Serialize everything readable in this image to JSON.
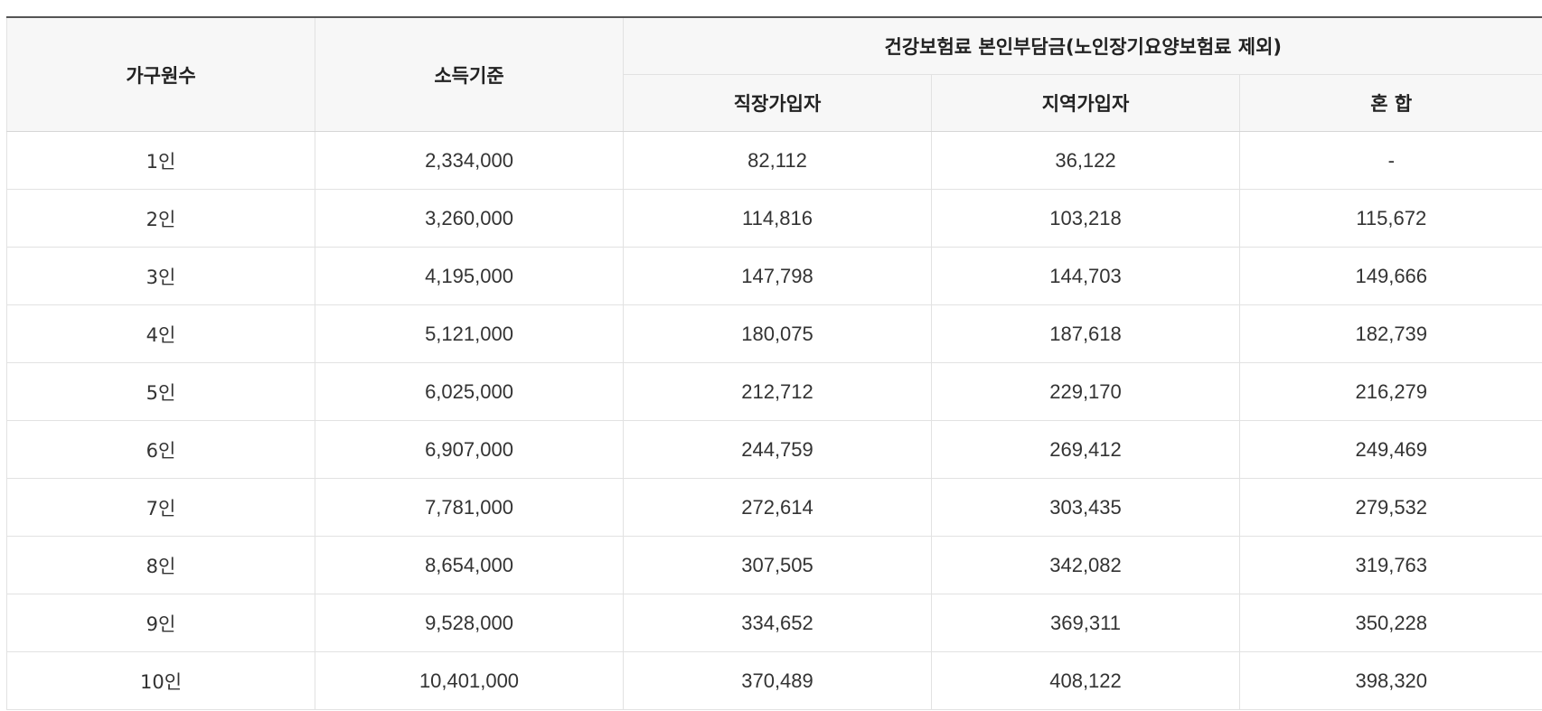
{
  "table": {
    "headers": {
      "household": "가구원수",
      "income": "소득기준",
      "group": "건강보험료 본인부담금(노인장기요양보험료 제외)",
      "employee": "직장가입자",
      "regional": "지역가입자",
      "mixed": "혼 합"
    },
    "rows": [
      [
        "1인",
        "2,334,000",
        "82,112",
        "36,122",
        "-"
      ],
      [
        "2인",
        "3,260,000",
        "114,816",
        "103,218",
        "115,672"
      ],
      [
        "3인",
        "4,195,000",
        "147,798",
        "144,703",
        "149,666"
      ],
      [
        "4인",
        "5,121,000",
        "180,075",
        "187,618",
        "182,739"
      ],
      [
        "5인",
        "6,025,000",
        "212,712",
        "229,170",
        "216,279"
      ],
      [
        "6인",
        "6,907,000",
        "244,759",
        "269,412",
        "249,469"
      ],
      [
        "7인",
        "7,781,000",
        "272,614",
        "303,435",
        "279,532"
      ],
      [
        "8인",
        "8,654,000",
        "307,505",
        "342,082",
        "319,763"
      ],
      [
        "9인",
        "9,528,000",
        "334,652",
        "369,311",
        "350,228"
      ],
      [
        "10인",
        "10,401,000",
        "370,489",
        "408,122",
        "398,320"
      ]
    ]
  }
}
